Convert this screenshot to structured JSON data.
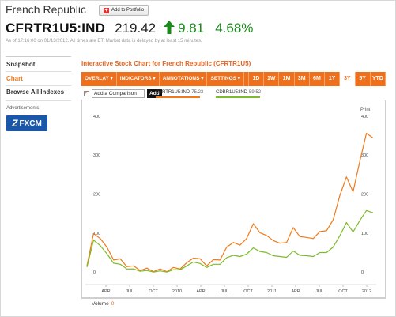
{
  "header": {
    "title": "French Republic",
    "portfolio_button": "Add to Portfolio",
    "ticker": "CFRTR1U5:IND",
    "price": "219.42",
    "change": "9.81",
    "change_pct": "4.68%",
    "as_of": "As of 17:16:00 on 01/13/2012. All times are ET. Market data is delayed by at least 15 minutes.",
    "up_color": "#1a8a1a"
  },
  "sidebar": {
    "items": [
      {
        "label": "Snapshot",
        "active": false
      },
      {
        "label": "Chart",
        "active": true
      },
      {
        "label": "Browse All Indexes",
        "active": false
      }
    ],
    "ad_label": "Advertisements",
    "ad_brand": "FXCM"
  },
  "chart": {
    "title": "Interactive Stock Chart for French Republic (CFRTR1U5)",
    "menus": [
      "OVERLAY ▾",
      "INDICATORS ▾",
      "ANNOTATIONS ▾",
      "SETTINGS ▾"
    ],
    "ranges": [
      "1D",
      "1W",
      "1M",
      "3M",
      "6M",
      "1Y",
      "3Y",
      "5Y",
      "YTD"
    ],
    "selected_range": "3Y",
    "compare_placeholder": "Add a Comparison",
    "add_button": "Add",
    "print_label": "Print",
    "volume_label": "Volume",
    "volume_value": "0",
    "accent": "#ee6f1c",
    "legend": [
      {
        "name": "CFRTR1U5:IND",
        "value": "75.23",
        "color": "#f07a1a"
      },
      {
        "name": "CDBR1U5:IND",
        "value": "59.52",
        "color": "#7dbb2a"
      }
    ]
  },
  "chart_data": {
    "type": "line",
    "x_tick_labels": [
      "APR",
      "JUL",
      "OCT",
      "2010",
      "APR",
      "JUL",
      "OCT",
      "2011",
      "APR",
      "JUL",
      "OCT",
      "2012"
    ],
    "left_y_ticks": [
      "400",
      "300",
      "200",
      "100",
      "0"
    ],
    "right_y_ticks": [
      "400",
      "300",
      "200",
      "100",
      "0"
    ],
    "series": [
      {
        "name": "CFRTR1U5:IND",
        "color": "#f07a1a",
        "values": [
          20,
          95,
          90,
          60,
          35,
          30,
          18,
          12,
          8,
          6,
          5,
          4,
          5,
          8,
          12,
          20,
          40,
          30,
          20,
          28,
          35,
          60,
          80,
          65,
          90,
          120,
          105,
          90,
          85,
          70,
          80,
          110,
          95,
          85,
          90,
          100,
          110,
          130,
          200,
          240,
          210,
          280,
          360,
          340
        ]
      },
      {
        "name": "CDBR1U5:IND",
        "color": "#7dbb2a",
        "values": [
          15,
          80,
          70,
          45,
          25,
          18,
          10,
          6,
          4,
          2,
          2,
          1,
          2,
          4,
          8,
          14,
          28,
          20,
          14,
          18,
          22,
          35,
          45,
          38,
          48,
          60,
          55,
          48,
          44,
          38,
          40,
          52,
          45,
          40,
          42,
          48,
          52,
          62,
          95,
          125,
          105,
          130,
          160,
          150
        ]
      }
    ],
    "ylim": [
      -30,
      420
    ]
  }
}
